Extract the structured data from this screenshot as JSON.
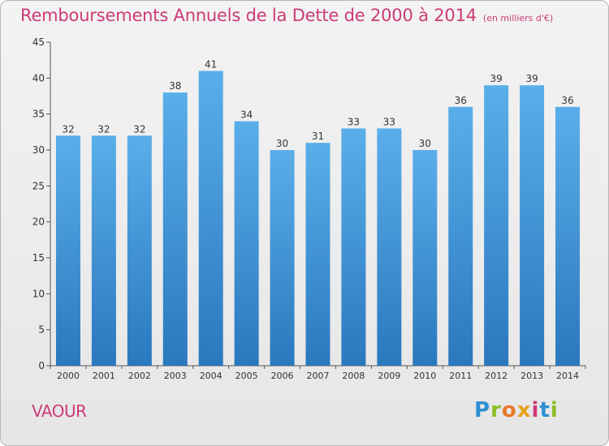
{
  "chart_data": {
    "type": "bar",
    "title": "Remboursements Annuels de la Dette de 2000 à 2014",
    "unit_label": "(en milliers d'€)",
    "categories": [
      "2000",
      "2001",
      "2002",
      "2003",
      "2004",
      "2005",
      "2006",
      "2007",
      "2008",
      "2009",
      "2010",
      "2011",
      "2012",
      "2013",
      "2014"
    ],
    "values": [
      32,
      32,
      32,
      38,
      41,
      34,
      30,
      31,
      33,
      33,
      30,
      36,
      39,
      39,
      36
    ],
    "data_labels": [
      "32",
      "32",
      "32",
      "38",
      "41",
      "34",
      "30",
      "31",
      "33",
      "33",
      "30",
      "36",
      "39",
      "39",
      "36"
    ],
    "ylim": [
      0,
      45
    ],
    "yticks": [
      "0",
      "5",
      "10",
      "15",
      "20",
      "25",
      "30",
      "35",
      "40",
      "45"
    ],
    "grid": false,
    "bar_color_top": "#5aaee9",
    "bar_color_bottom": "#2a78be"
  },
  "footer": {
    "place": "VAOUR",
    "logo": "Proxiti"
  },
  "colors": {
    "title": "#cc3b77",
    "place": "#cc3b77"
  }
}
